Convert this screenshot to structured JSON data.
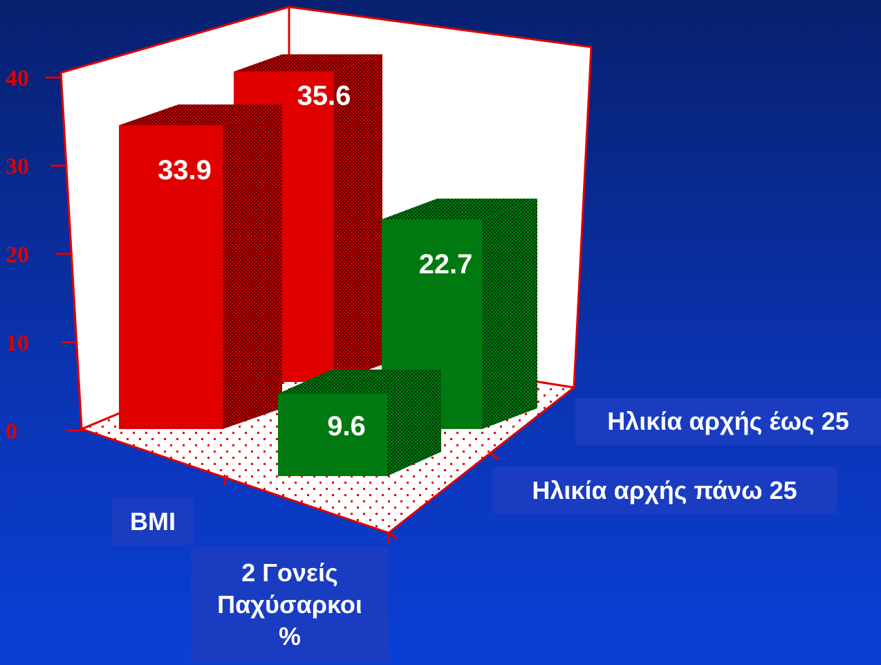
{
  "chart_data": {
    "type": "bar",
    "categories": [
      "BMI",
      "2 Γονείς Παχύσαρκοι %"
    ],
    "series": [
      {
        "name": "Ηλικία αρχής έως 25",
        "values": [
          33.9,
          35.6
        ],
        "color": "#e00000"
      },
      {
        "name": "Ηλικία αρχής πάνω 25",
        "values": [
          9.6,
          22.7
        ],
        "color": "#007a10"
      }
    ],
    "ylim": [
      0,
      40
    ],
    "yticks": [
      "0",
      "10",
      "20",
      "30",
      "40"
    ],
    "grid": false,
    "legend": "right"
  },
  "labels": {
    "cat1": "BMI",
    "cat2_line1": "2 Γονείς",
    "cat2_line2": "Παχύσαρκοι",
    "cat2_line3": "%",
    "series_back": "Ηλικία αρχής έως 25",
    "series_front": "Ηλικία αρχής πάνω 25"
  },
  "values_text": {
    "red_back": "35.6",
    "red_front": "33.9",
    "green_back": "22.7",
    "green_front": "9.6"
  }
}
